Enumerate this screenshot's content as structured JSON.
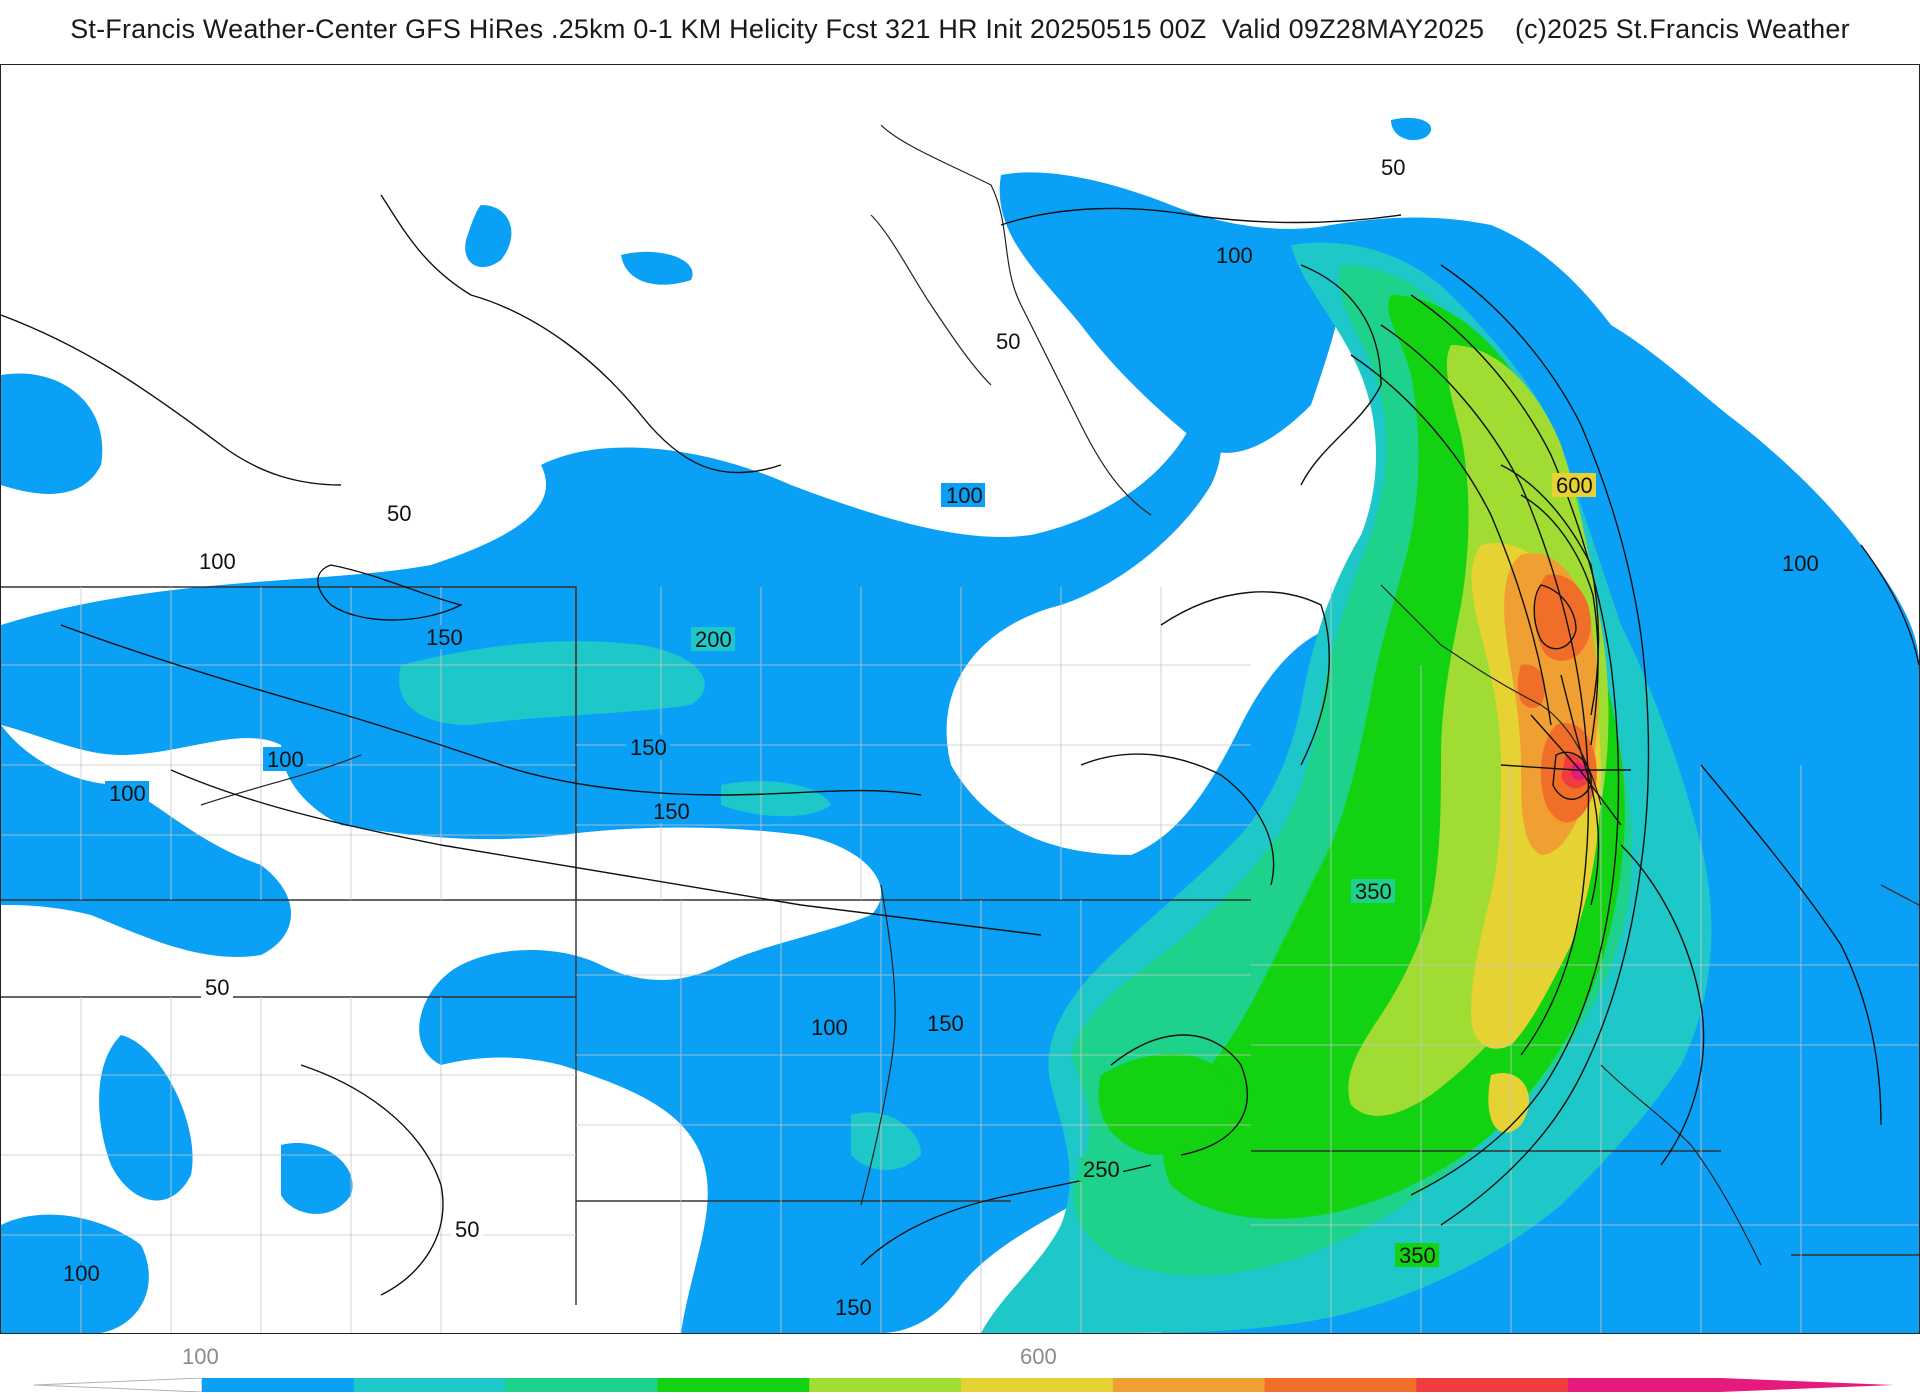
{
  "title": "St-Francis Weather-Center GFS HiRes .25km 0-1 KM Helicity Fcst 321 HR Init 20250515 00Z  Valid 09Z28MAY2025    (c)2025 St.Francis Weather",
  "map": {
    "field": "0-1 KM Helicity",
    "contour_labels": [
      "50",
      "100",
      "50",
      "50",
      "100",
      "100",
      "100",
      "150",
      "200",
      "150",
      "150",
      "100",
      "100",
      "50",
      "50",
      "100",
      "100",
      "150",
      "150",
      "250",
      "350",
      "350",
      "600",
      "100"
    ]
  },
  "colorbar": {
    "tick_labels": [
      "100",
      "600"
    ],
    "colors": [
      "#0aa0f5",
      "#1ec8c8",
      "#1ed28c",
      "#12d212",
      "#a0dc32",
      "#e6d232",
      "#f0a032",
      "#f06e28",
      "#f03c3c",
      "#e6197d"
    ]
  }
}
